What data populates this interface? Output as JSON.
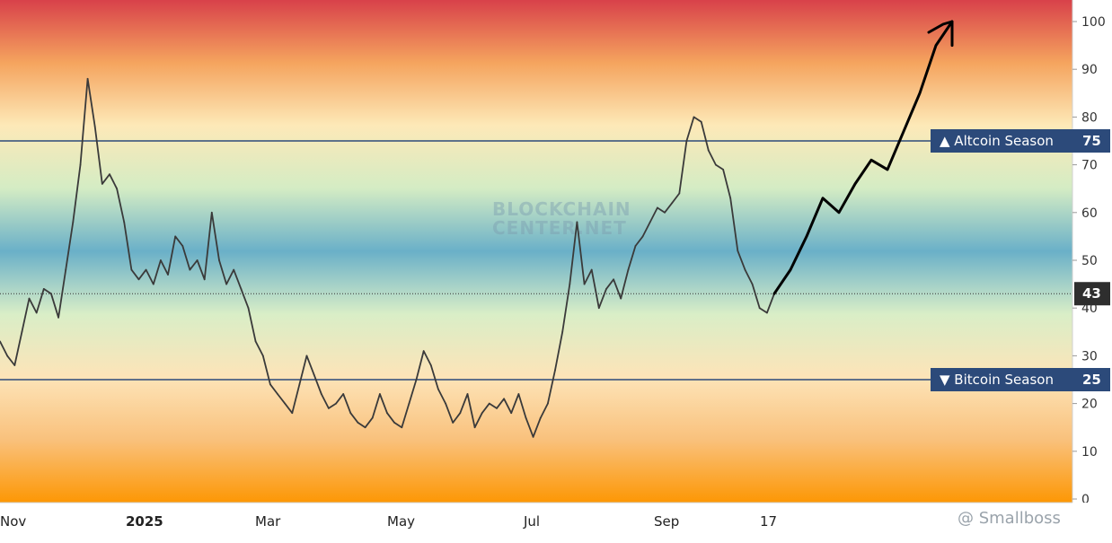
{
  "chart_data": {
    "type": "line",
    "y_axis": {
      "ticks": [
        0,
        10,
        20,
        30,
        40,
        50,
        60,
        70,
        80,
        90,
        100
      ],
      "ylim": [
        0,
        100
      ],
      "position": "right"
    },
    "x_axis": {
      "tick_labels": [
        "Nov",
        "2025",
        "Mar",
        "May",
        "Jul",
        "Sep",
        "17"
      ]
    },
    "current_value": 43,
    "thresholds": [
      {
        "label": "▲ Altcoin Season",
        "value": 75,
        "color": "#2c4a7a"
      },
      {
        "label": "▼ Bitcoin Season",
        "value": 25,
        "color": "#2c4a7a"
      }
    ],
    "series": [
      {
        "color": "#3a3a3a",
        "values": [
          33,
          30,
          28,
          35,
          42,
          39,
          44,
          43,
          38,
          48,
          58,
          70,
          88,
          78,
          66,
          68,
          65,
          58,
          48,
          46,
          48,
          45,
          50,
          47,
          55,
          53,
          48,
          50,
          46,
          60,
          50,
          45,
          48,
          44,
          40,
          33,
          30,
          24,
          22,
          20,
          18,
          24,
          30,
          26,
          22,
          19,
          20,
          22,
          18,
          16,
          15,
          17,
          22,
          18,
          16,
          15,
          20,
          25,
          31,
          28,
          23,
          20,
          16,
          18,
          22,
          15,
          18,
          20,
          19,
          21,
          18,
          22,
          17,
          13,
          17,
          20,
          27,
          35,
          45,
          58,
          45,
          48,
          40,
          44,
          46,
          42,
          48,
          53,
          55,
          58,
          61,
          60,
          62,
          64,
          75,
          80,
          79,
          73,
          70,
          69,
          63,
          52,
          48,
          45,
          40,
          39,
          43
        ]
      }
    ],
    "projection": {
      "color": "#000000",
      "values": [
        43,
        48,
        55,
        63,
        60,
        66,
        71,
        69,
        77,
        85,
        95,
        100,
        95
      ]
    },
    "labels": {
      "current_value_badge": "43",
      "watermark": [
        "BLOCKCHAIN",
        "CENTER.NET"
      ],
      "credit": "@ Smallboss"
    },
    "background_gradient": [
      "#d8414a",
      "#f5a45e",
      "#fde9b8",
      "#d4ecc4",
      "#6ab0c8",
      "#d9eec7",
      "#fde4b8",
      "#f9c17c",
      "#fd9704"
    ],
    "grid": false
  }
}
